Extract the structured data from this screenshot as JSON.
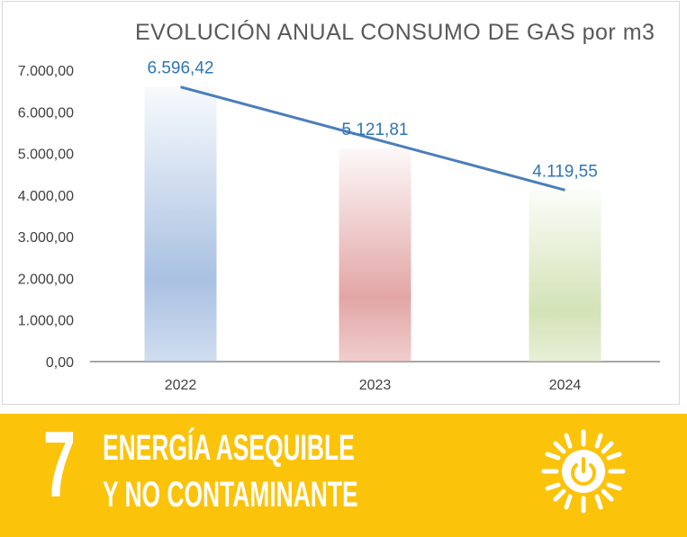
{
  "chart_data": {
    "type": "bar",
    "title": "EVOLUCIÓN  ANUAL CONSUMO  DE GAS por m3",
    "categories": [
      "2022",
      "2023",
      "2024"
    ],
    "values": [
      6596.42,
      5121.81,
      4119.55
    ],
    "value_labels": [
      "6.596,42",
      "5.121,81",
      "4.119,55"
    ],
    "ylim": [
      0,
      7000
    ],
    "yticks": [
      "0,00",
      "1.000,00",
      "2.000,00",
      "3.000,00",
      "4.000,00",
      "5.000,00",
      "6.000,00",
      "7.000,00"
    ],
    "bar_colors": [
      "#a9c1e2",
      "#e3a6a6",
      "#d4e3b7"
    ],
    "trend_line": true,
    "trend_color": "#4a7ebb",
    "label_color": "#2e75b6",
    "grid": false
  },
  "banner": {
    "number": "7",
    "line1": "ENERGÍA ASEQUIBLE",
    "line2": "Y NO CONTAMINANTE",
    "icon": "sun-power-icon",
    "color": "#fcc30b"
  }
}
